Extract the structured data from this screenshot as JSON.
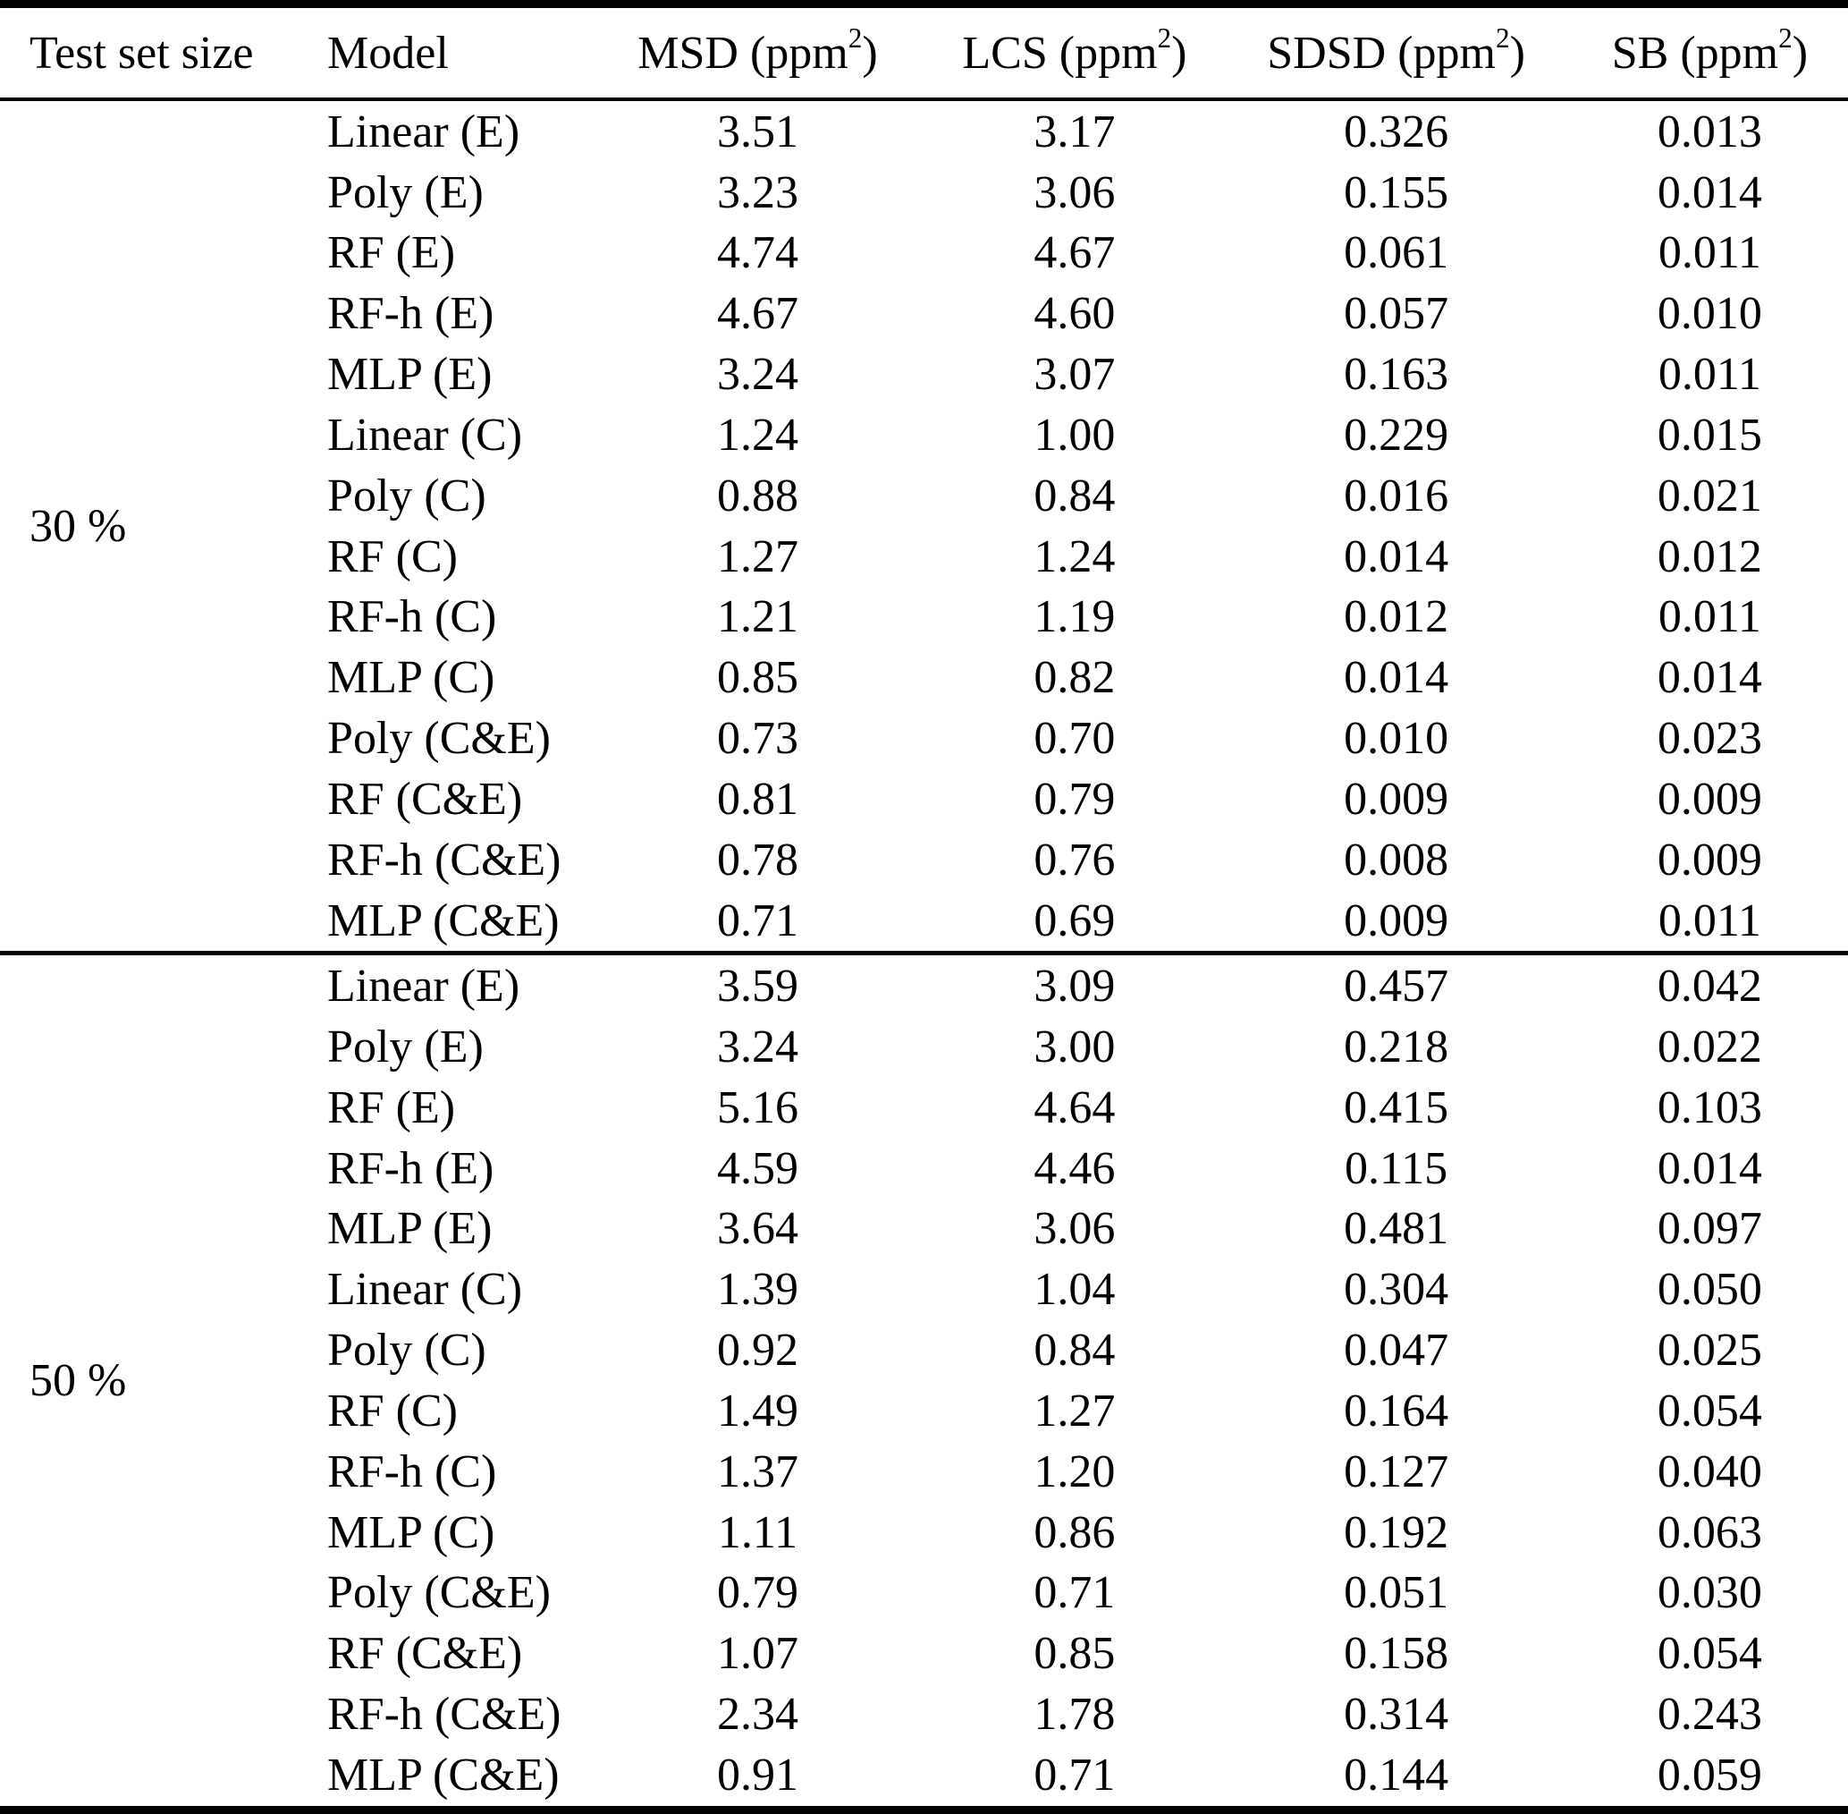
{
  "table": {
    "header": {
      "test_set_size": "Test set size",
      "model": "Model",
      "metric_cols": [
        {
          "name": "MSD",
          "unit_prefix": "(ppm",
          "exponent": "2",
          "unit_suffix": ")"
        },
        {
          "name": "LCS",
          "unit_prefix": "(ppm",
          "exponent": "2",
          "unit_suffix": ")"
        },
        {
          "name": "SDSD",
          "unit_prefix": "(ppm",
          "exponent": "2",
          "unit_suffix": ")"
        },
        {
          "name": "SB",
          "unit_prefix": "(ppm",
          "exponent": "2",
          "unit_suffix": ")"
        }
      ]
    },
    "groups": [
      {
        "test_set_size": "30 %",
        "rows": [
          {
            "model": "Linear (E)",
            "msd": "3.51",
            "lcs": "3.17",
            "sdsd": "0.326",
            "sb": "0.013"
          },
          {
            "model": "Poly (E)",
            "msd": "3.23",
            "lcs": "3.06",
            "sdsd": "0.155",
            "sb": "0.014"
          },
          {
            "model": "RF (E)",
            "msd": "4.74",
            "lcs": "4.67",
            "sdsd": "0.061",
            "sb": "0.011"
          },
          {
            "model": "RF-h (E)",
            "msd": "4.67",
            "lcs": "4.60",
            "sdsd": "0.057",
            "sb": "0.010"
          },
          {
            "model": "MLP (E)",
            "msd": "3.24",
            "lcs": "3.07",
            "sdsd": "0.163",
            "sb": "0.011"
          },
          {
            "model": "Linear (C)",
            "msd": "1.24",
            "lcs": "1.00",
            "sdsd": "0.229",
            "sb": "0.015"
          },
          {
            "model": "Poly (C)",
            "msd": "0.88",
            "lcs": "0.84",
            "sdsd": "0.016",
            "sb": "0.021"
          },
          {
            "model": "RF (C)",
            "msd": "1.27",
            "lcs": "1.24",
            "sdsd": "0.014",
            "sb": "0.012"
          },
          {
            "model": "RF-h (C)",
            "msd": "1.21",
            "lcs": "1.19",
            "sdsd": "0.012",
            "sb": "0.011"
          },
          {
            "model": "MLP (C)",
            "msd": "0.85",
            "lcs": "0.82",
            "sdsd": "0.014",
            "sb": "0.014"
          },
          {
            "model": "Poly (C&E)",
            "msd": "0.73",
            "lcs": "0.70",
            "sdsd": "0.010",
            "sb": "0.023"
          },
          {
            "model": "RF (C&E)",
            "msd": "0.81",
            "lcs": "0.79",
            "sdsd": "0.009",
            "sb": "0.009"
          },
          {
            "model": "RF-h (C&E)",
            "msd": "0.78",
            "lcs": "0.76",
            "sdsd": "0.008",
            "sb": "0.009"
          },
          {
            "model": "MLP (C&E)",
            "msd": "0.71",
            "lcs": "0.69",
            "sdsd": "0.009",
            "sb": "0.011"
          }
        ]
      },
      {
        "test_set_size": "50 %",
        "rows": [
          {
            "model": "Linear (E)",
            "msd": "3.59",
            "lcs": "3.09",
            "sdsd": "0.457",
            "sb": "0.042"
          },
          {
            "model": "Poly (E)",
            "msd": "3.24",
            "lcs": "3.00",
            "sdsd": "0.218",
            "sb": "0.022"
          },
          {
            "model": "RF (E)",
            "msd": "5.16",
            "lcs": "4.64",
            "sdsd": "0.415",
            "sb": "0.103"
          },
          {
            "model": "RF-h (E)",
            "msd": "4.59",
            "lcs": "4.46",
            "sdsd": "0.115",
            "sb": "0.014"
          },
          {
            "model": "MLP (E)",
            "msd": "3.64",
            "lcs": "3.06",
            "sdsd": "0.481",
            "sb": "0.097"
          },
          {
            "model": "Linear (C)",
            "msd": "1.39",
            "lcs": "1.04",
            "sdsd": "0.304",
            "sb": "0.050"
          },
          {
            "model": "Poly (C)",
            "msd": "0.92",
            "lcs": "0.84",
            "sdsd": "0.047",
            "sb": "0.025"
          },
          {
            "model": "RF (C)",
            "msd": "1.49",
            "lcs": "1.27",
            "sdsd": "0.164",
            "sb": "0.054"
          },
          {
            "model": "RF-h (C)",
            "msd": "1.37",
            "lcs": "1.20",
            "sdsd": "0.127",
            "sb": "0.040"
          },
          {
            "model": "MLP (C)",
            "msd": "1.11",
            "lcs": "0.86",
            "sdsd": "0.192",
            "sb": "0.063"
          },
          {
            "model": "Poly (C&E)",
            "msd": "0.79",
            "lcs": "0.71",
            "sdsd": "0.051",
            "sb": "0.030"
          },
          {
            "model": "RF (C&E)",
            "msd": "1.07",
            "lcs": "0.85",
            "sdsd": "0.158",
            "sb": "0.054"
          },
          {
            "model": "RF-h (C&E)",
            "msd": "2.34",
            "lcs": "1.78",
            "sdsd": "0.314",
            "sb": "0.243"
          },
          {
            "model": "MLP (C&E)",
            "msd": "0.91",
            "lcs": "0.71",
            "sdsd": "0.144",
            "sb": "0.059"
          }
        ]
      }
    ]
  }
}
